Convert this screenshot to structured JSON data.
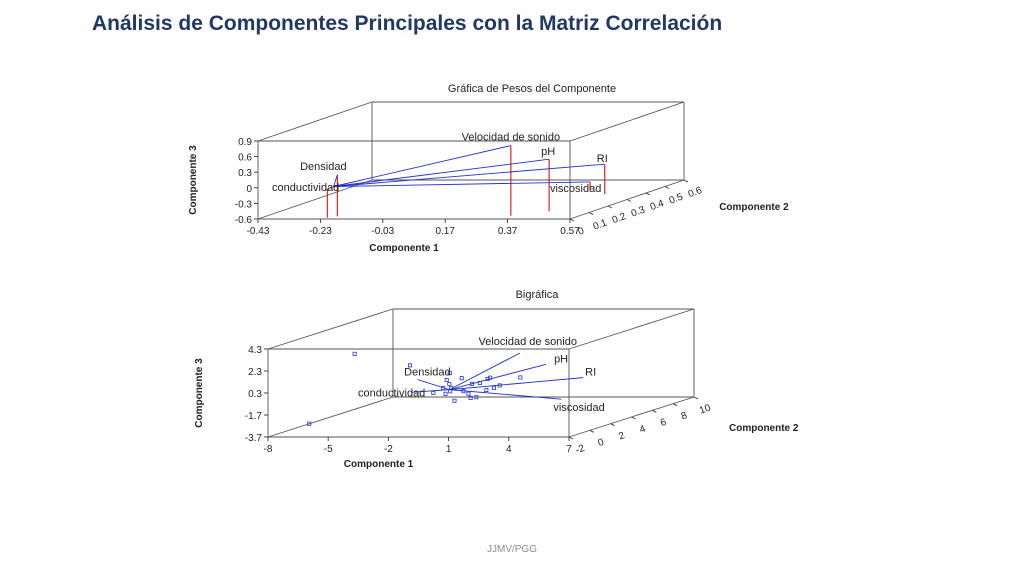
{
  "slide": {
    "title": "Análisis  de Componentes Principales con la Matriz Correlación",
    "footer": "JJMV/PGG"
  },
  "chart_data": [
    {
      "type": "scatter",
      "title": "Gráfica de Pesos del Componente",
      "xlabel": "Componente 1",
      "ylabel": "Componente 2",
      "zlabel": "Componente 3",
      "x_ticks": [
        "-0.43",
        "-0.23",
        "-0.03",
        "0.17",
        "0.37",
        "0.57"
      ],
      "y_ticks": [
        "0",
        "0.1",
        "0.2",
        "0.3",
        "0.4",
        "0.5",
        "0.6"
      ],
      "z_ticks": [
        "0.9",
        "0.6",
        "0.3",
        "0",
        "-0.3",
        "-0.6"
      ],
      "xlim": [
        -0.43,
        0.57
      ],
      "ylim": [
        0,
        0.6
      ],
      "zlim": [
        -0.6,
        0.9
      ],
      "points": [
        {
          "label": "Velocidad de sonido",
          "x": 0.35,
          "y": 0.05,
          "z": 0.75
        },
        {
          "label": "pH",
          "x": 0.43,
          "y": 0.12,
          "z": 0.4
        },
        {
          "label": "RI",
          "x": 0.45,
          "y": 0.38,
          "z": -0.02
        },
        {
          "label": "viscosidad",
          "x": 0.36,
          "y": 0.45,
          "z": -0.45
        },
        {
          "label": "Densidad",
          "x": -0.2,
          "y": 0.04,
          "z": 0.2
        },
        {
          "label": "conductividad",
          "x": -0.22,
          "y": 0.02,
          "z": -0.05
        }
      ]
    },
    {
      "type": "scatter",
      "title": "Bigráfica",
      "xlabel": "Componente 1",
      "ylabel": "Componente 2",
      "zlabel": "Componente 3",
      "x_ticks": [
        "-8",
        "-5",
        "-2",
        "1",
        "4",
        "7"
      ],
      "y_ticks": [
        "-2",
        "0",
        "2",
        "4",
        "6",
        "8",
        "10"
      ],
      "z_ticks": [
        "4.3",
        "2.3",
        "0.3",
        "-1.7",
        "-3.7"
      ],
      "xlim": [
        -8,
        7
      ],
      "ylim": [
        -2,
        10
      ],
      "zlim": [
        -3.7,
        4.3
      ],
      "vectors": [
        {
          "label": "Velocidad de sonido",
          "x": 3.3,
          "y": 0.4,
          "z": 3.2
        },
        {
          "label": "pH",
          "x": 4.3,
          "y": 1.0,
          "z": 2.0
        },
        {
          "label": "RI",
          "x": 4.8,
          "y": 3.6,
          "z": 0.0
        },
        {
          "label": "viscosidad",
          "x": 3.3,
          "y": 4.4,
          "z": -2.2
        },
        {
          "label": "Densidad",
          "x": -1.8,
          "y": 0.4,
          "z": 0.8
        },
        {
          "label": "conductividad",
          "x": -2.0,
          "y": 0.2,
          "z": -0.3
        }
      ],
      "points": [
        {
          "x": -7.5,
          "y": 1.0,
          "z": -3.4
        },
        {
          "x": -5.5,
          "y": 1.5,
          "z": 2.8
        },
        {
          "x": -3.0,
          "y": 2.0,
          "z": 1.6
        },
        {
          "x": -0.5,
          "y": 1.0,
          "z": 1.2
        },
        {
          "x": 0.0,
          "y": 0.0,
          "z": 0.5
        },
        {
          "x": 0.3,
          "y": -0.5,
          "z": 0.0
        },
        {
          "x": 0.6,
          "y": 0.2,
          "z": -0.2
        },
        {
          "x": 1.0,
          "y": 1.0,
          "z": 0.3
        },
        {
          "x": -0.4,
          "y": 0.4,
          "z": -0.5
        },
        {
          "x": 1.5,
          "y": -0.3,
          "z": -0.6
        },
        {
          "x": 0.2,
          "y": 0.8,
          "z": 0.8
        },
        {
          "x": -0.2,
          "y": -0.2,
          "z": 0.2
        },
        {
          "x": 0.8,
          "y": 0.5,
          "z": -0.9
        },
        {
          "x": 1.8,
          "y": 0.2,
          "z": 0.9
        },
        {
          "x": 0.4,
          "y": 1.4,
          "z": 0.1
        },
        {
          "x": -0.8,
          "y": 0.0,
          "z": -0.3
        },
        {
          "x": 1.2,
          "y": 1.6,
          "z": 0.6
        },
        {
          "x": 0.1,
          "y": 0.3,
          "z": -1.1
        },
        {
          "x": 2.2,
          "y": 0.6,
          "z": 0.2
        },
        {
          "x": 0.5,
          "y": -0.8,
          "z": 0.4
        },
        {
          "x": -0.6,
          "y": 0.9,
          "z": 0.6
        },
        {
          "x": 0.9,
          "y": 0.1,
          "z": -0.4
        },
        {
          "x": 1.6,
          "y": 1.2,
          "z": -0.2
        },
        {
          "x": 2.5,
          "y": 2.0,
          "z": 0.5
        },
        {
          "x": 0.7,
          "y": 2.2,
          "z": -0.7
        }
      ]
    }
  ]
}
